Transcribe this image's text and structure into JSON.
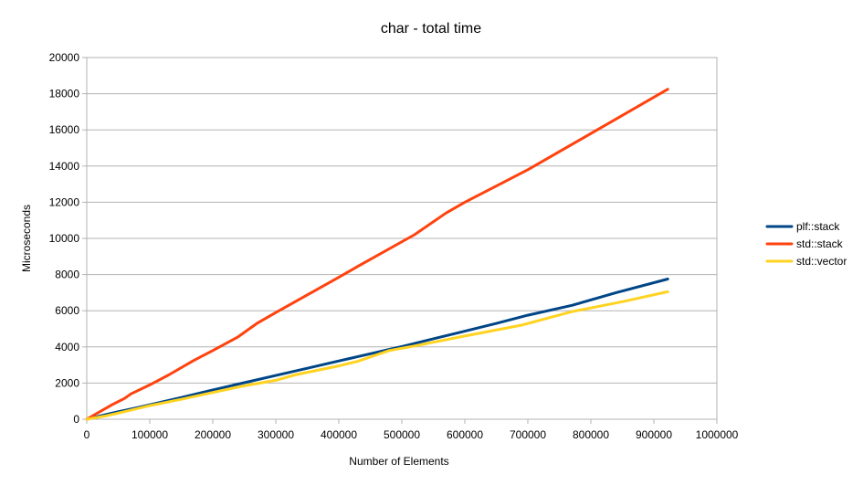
{
  "chart_data": {
    "type": "line",
    "title": "char  - total time",
    "xlabel": "Number of Elements",
    "ylabel": "Microseconds",
    "xlim": [
      0,
      1000000
    ],
    "ylim": [
      0,
      20000
    ],
    "x_ticks": [
      0,
      100000,
      200000,
      300000,
      400000,
      500000,
      600000,
      700000,
      800000,
      900000,
      1000000
    ],
    "y_ticks": [
      0,
      2000,
      4000,
      6000,
      8000,
      10000,
      12000,
      14000,
      16000,
      18000,
      20000
    ],
    "grid": "horizontal",
    "legend_position": "right",
    "series": [
      {
        "name": "plf::stack",
        "color": "#004586",
        "x": [
          0,
          10000,
          20000,
          40000,
          60000,
          80000,
          100000,
          150000,
          200000,
          250000,
          300000,
          350000,
          400000,
          450000,
          500000,
          550000,
          600000,
          650000,
          700000,
          770000,
          840000,
          922000
        ],
        "y": [
          0,
          80,
          170,
          340,
          490,
          640,
          800,
          1200,
          1620,
          2020,
          2420,
          2820,
          3220,
          3620,
          4020,
          4450,
          4870,
          5300,
          5750,
          6300,
          7000,
          7750
        ]
      },
      {
        "name": "std::stack",
        "color": "#ff420e",
        "x": [
          0,
          10000,
          20000,
          40000,
          60000,
          70000,
          100000,
          130000,
          170000,
          200000,
          240000,
          270000,
          300000,
          400000,
          430000,
          520000,
          570000,
          600000,
          700000,
          800000,
          922000
        ],
        "y": [
          0,
          200,
          400,
          800,
          1150,
          1400,
          1900,
          2450,
          3250,
          3800,
          4550,
          5300,
          5900,
          7850,
          8450,
          10200,
          11400,
          12000,
          13800,
          15800,
          18250
        ]
      },
      {
        "name": "std::vector",
        "color": "#ffd320",
        "x": [
          0,
          10000,
          30000,
          60000,
          100000,
          150000,
          200000,
          250000,
          300000,
          330000,
          400000,
          430000,
          480000,
          520000,
          600000,
          690000,
          770000,
          850000,
          922000
        ],
        "y": [
          0,
          60,
          180,
          420,
          750,
          1100,
          1480,
          1850,
          2150,
          2450,
          2950,
          3200,
          3800,
          4050,
          4600,
          5200,
          5950,
          6500,
          7050
        ]
      }
    ]
  }
}
